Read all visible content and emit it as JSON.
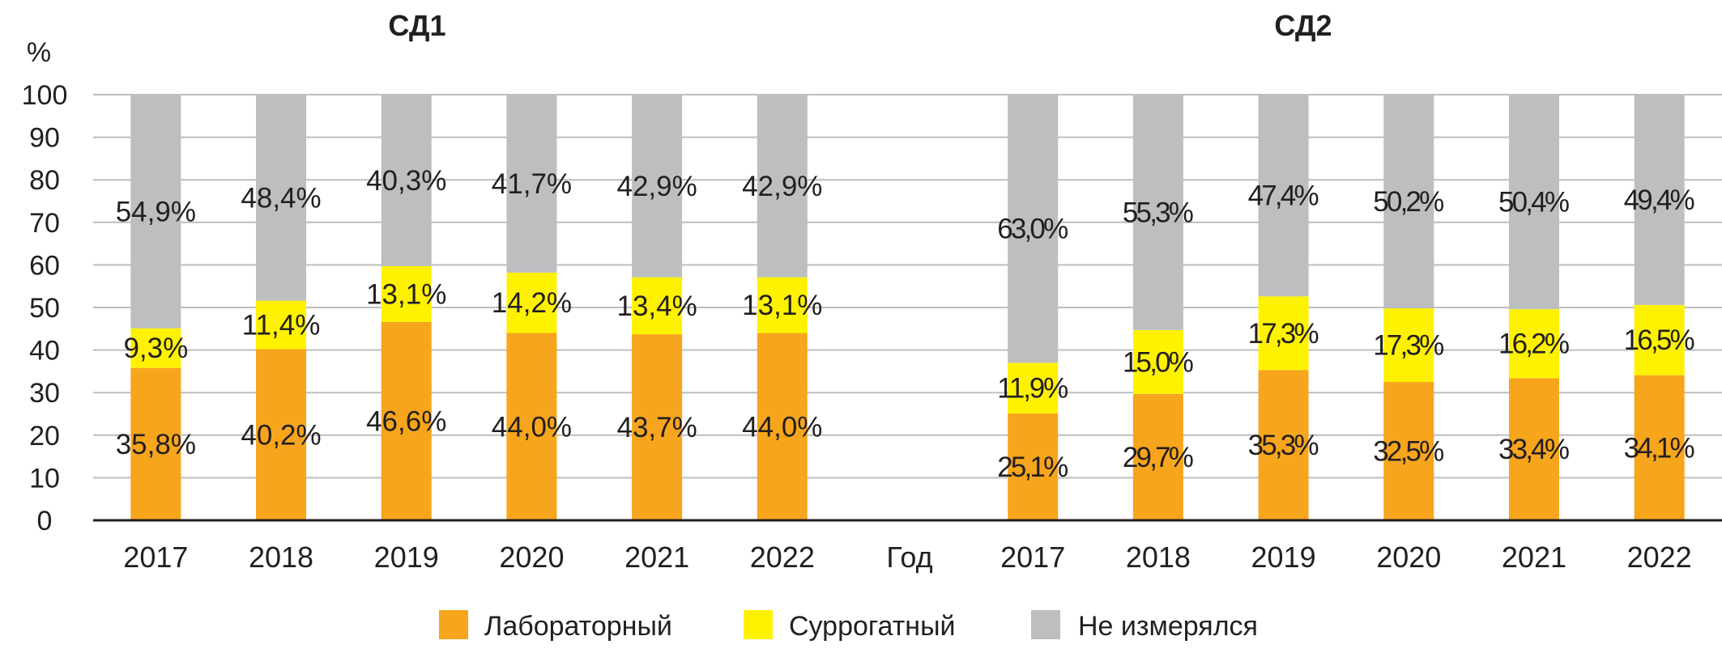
{
  "chart_data": {
    "type": "bar",
    "stacked": true,
    "y_unit_label": "%",
    "ylim": [
      0,
      100
    ],
    "yticks": [
      0,
      10,
      20,
      30,
      40,
      50,
      60,
      70,
      80,
      90,
      100
    ],
    "grid": true,
    "xlabel": "Год",
    "legend_position": "bottom",
    "colors": {
      "lab": "#F7A51C",
      "surrogate": "#FFF200",
      "not_measured": "#BCBEC0"
    },
    "legend": [
      {
        "key": "lab",
        "label": "Лабораторный"
      },
      {
        "key": "surrogate",
        "label": "Суррогатный"
      },
      {
        "key": "not_measured",
        "label": "Не измерялся"
      }
    ],
    "panels": [
      {
        "title": "СД1",
        "categories": [
          "2017",
          "2018",
          "2019",
          "2020",
          "2021",
          "2022"
        ],
        "series": [
          {
            "key": "lab",
            "name": "Лабораторный",
            "values": [
              35.8,
              40.2,
              46.6,
              44.0,
              43.7,
              44.0
            ],
            "labels": [
              "35,8%",
              "40,2%",
              "46,6%",
              "44,0%",
              "43,7%",
              "44,0%"
            ]
          },
          {
            "key": "surrogate",
            "name": "Суррогатный",
            "values": [
              9.3,
              11.4,
              13.1,
              14.2,
              13.4,
              13.1
            ],
            "labels": [
              "9,3%",
              "11,4%",
              "13,1%",
              "14,2%",
              "13,4%",
              "13,1%"
            ]
          },
          {
            "key": "not_measured",
            "name": "Не измерялся",
            "values": [
              54.9,
              48.4,
              40.3,
              41.7,
              42.9,
              42.9
            ],
            "labels": [
              "54,9%",
              "48,4%",
              "40,3%",
              "41,7%",
              "42,9%",
              "42,9%"
            ]
          }
        ]
      },
      {
        "title": "СД2",
        "categories": [
          "2017",
          "2018",
          "2019",
          "2020",
          "2021",
          "2022"
        ],
        "series": [
          {
            "key": "lab",
            "name": "Лабораторный",
            "values": [
              25.1,
              29.7,
              35.3,
              32.5,
              33.4,
              34.1
            ],
            "labels": [
              "25,1%",
              "29,7%",
              "35,3%",
              "32,5%",
              "33,4%",
              "34,1%"
            ]
          },
          {
            "key": "surrogate",
            "name": "Суррогатный",
            "values": [
              11.9,
              15.0,
              17.3,
              17.3,
              16.2,
              16.5
            ],
            "labels": [
              "11,9%",
              "15,0%",
              "17,3%",
              "17,3%",
              "16,2%",
              "16,5%"
            ]
          },
          {
            "key": "not_measured",
            "name": "Не измерялся",
            "values": [
              63.0,
              55.3,
              47.4,
              50.2,
              50.4,
              49.4
            ],
            "labels": [
              "63,0%",
              "55,3%",
              "47,4%",
              "50,2%",
              "50,4%",
              "49,4%"
            ]
          }
        ]
      }
    ]
  }
}
